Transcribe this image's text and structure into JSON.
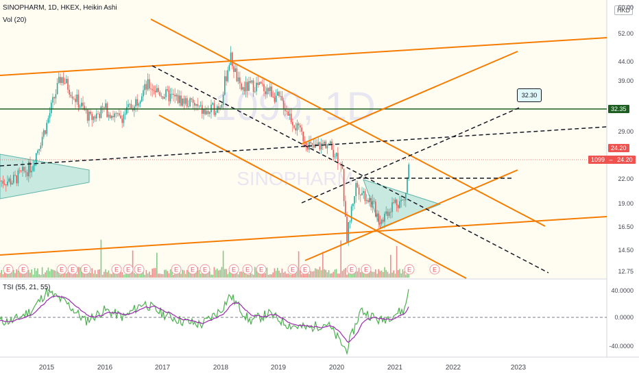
{
  "header": {
    "symbol_line": "SINOPHARM, 1D, HKEX, Heikin Ashi",
    "volume_label": "Vol (20)",
    "tsi_label": "TSI (55, 21, 55)",
    "watermark_symbol": "1099, 1D",
    "watermark_name": "SINOPHARM"
  },
  "currency_badge": "HKD",
  "price_axis": {
    "labels": [
      "60.00",
      "52.00",
      "44.00",
      "39.00",
      "32.35",
      "29.00",
      "24.20",
      "22.00",
      "19.00",
      "16.50",
      "14.50",
      "12.75"
    ]
  },
  "tsi_axis": {
    "labels": [
      "40.0000",
      "0.0000",
      "-40.0000"
    ]
  },
  "time_axis": {
    "labels": [
      "2015",
      "2016",
      "2017",
      "2018",
      "2019",
      "2020",
      "2021",
      "2022",
      "2023"
    ]
  },
  "price_tags": {
    "last_price": "24.20",
    "symbol_tag_symbol": "1099",
    "symbol_tag_price": "24.20",
    "horizontal_level": "32.35",
    "callout": "32.30"
  },
  "earnings_marker": "E",
  "colors": {
    "up": "#26a69a",
    "down": "#ef5350",
    "trendline": "#f57c00",
    "horizontal_level": "#1b5e20",
    "tsi_line": "#4caf50",
    "tsi_signal": "#9c27b0",
    "callout_bg": "#e0f7fa"
  },
  "chart_data": {
    "type": "candlestick",
    "ohlc_series": "Heikin Ashi",
    "y_scale": "log",
    "ylim": [
      12,
      60
    ],
    "x_range": [
      "2014-05",
      "2023-12"
    ],
    "price_path": [
      [
        "2014-06",
        21.5
      ],
      [
        "2014-10",
        23.5
      ],
      [
        "2015-01",
        30
      ],
      [
        "2015-04",
        40
      ],
      [
        "2015-07",
        35
      ],
      [
        "2015-10",
        31
      ],
      [
        "2016-01",
        33
      ],
      [
        "2016-04",
        31
      ],
      [
        "2016-07",
        34
      ],
      [
        "2016-10",
        38
      ],
      [
        "2017-01",
        36
      ],
      [
        "2017-04",
        35
      ],
      [
        "2017-07",
        34
      ],
      [
        "2017-10",
        32
      ],
      [
        "2018-01",
        34
      ],
      [
        "2018-03",
        45
      ],
      [
        "2018-05",
        37
      ],
      [
        "2018-08",
        38
      ],
      [
        "2018-11",
        37
      ],
      [
        "2019-02",
        34
      ],
      [
        "2019-05",
        29
      ],
      [
        "2019-08",
        26
      ],
      [
        "2019-11",
        27
      ],
      [
        "2020-02",
        24
      ],
      [
        "2020-03",
        15
      ],
      [
        "2020-05",
        21
      ],
      [
        "2020-08",
        19
      ],
      [
        "2020-10",
        17
      ],
      [
        "2021-01",
        19
      ],
      [
        "2021-03",
        19
      ],
      [
        "2021-04",
        24.2
      ]
    ],
    "tsi": {
      "params": [
        55,
        21,
        55
      ],
      "ylim": [
        -55,
        55
      ],
      "path": [
        [
          "2014-06",
          -5
        ],
        [
          "2014-10",
          10
        ],
        [
          "2015-01",
          35
        ],
        [
          "2015-05",
          20
        ],
        [
          "2015-09",
          -5
        ],
        [
          "2016-01",
          10
        ],
        [
          "2016-05",
          0
        ],
        [
          "2016-09",
          20
        ],
        [
          "2017-01",
          5
        ],
        [
          "2017-05",
          -5
        ],
        [
          "2017-09",
          -10
        ],
        [
          "2018-01",
          10
        ],
        [
          "2018-03",
          30
        ],
        [
          "2018-07",
          -5
        ],
        [
          "2018-11",
          5
        ],
        [
          "2019-03",
          -10
        ],
        [
          "2019-07",
          -15
        ],
        [
          "2019-11",
          -8
        ],
        [
          "2020-03",
          -45
        ],
        [
          "2020-06",
          10
        ],
        [
          "2020-10",
          -5
        ],
        [
          "2021-01",
          5
        ],
        [
          "2021-03",
          10
        ],
        [
          "2021-04",
          45
        ]
      ]
    }
  }
}
